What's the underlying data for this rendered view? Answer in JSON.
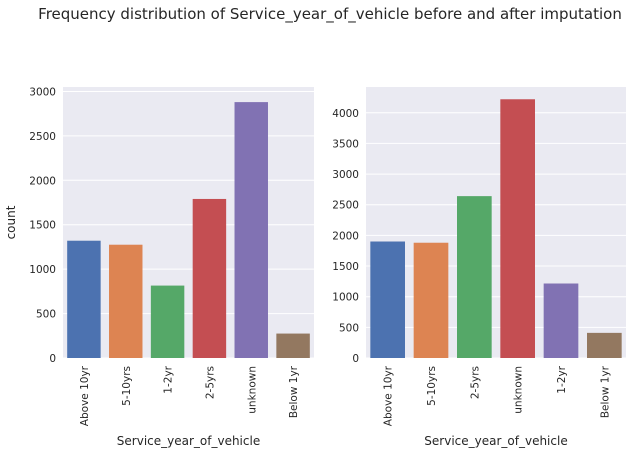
{
  "title": "Frequency distribution of Service_year_of_vehicle before and after imputation",
  "chart_data": [
    {
      "type": "bar",
      "title": "",
      "xlabel": "Service_year_of_vehicle",
      "ylabel": "count",
      "categories": [
        "Above 10yr",
        "5-10yrs",
        "1-2yr",
        "2-5yrs",
        "unknown",
        "Below 1yr"
      ],
      "values": [
        1320,
        1275,
        815,
        1790,
        2880,
        275
      ],
      "colors": [
        "#4c72b0",
        "#dd8452",
        "#55a868",
        "#c44e52",
        "#8172b3",
        "#937860"
      ],
      "ylim": [
        0,
        3050
      ],
      "yticks": [
        0,
        500,
        1000,
        1500,
        2000,
        2500,
        3000
      ],
      "grid": true
    },
    {
      "type": "bar",
      "title": "",
      "xlabel": "Service_year_of_vehicle",
      "ylabel": "",
      "categories": [
        "Above 10yr",
        "5-10yrs",
        "2-5yrs",
        "unknown",
        "1-2yr",
        "Below 1yr"
      ],
      "values": [
        1900,
        1880,
        2640,
        4220,
        1215,
        410
      ],
      "colors": [
        "#4c72b0",
        "#dd8452",
        "#55a868",
        "#c44e52",
        "#8172b3",
        "#937860"
      ],
      "ylim": [
        0,
        4420
      ],
      "yticks": [
        0,
        500,
        1000,
        1500,
        2000,
        2500,
        3000,
        3500,
        4000
      ],
      "grid": true
    }
  ]
}
